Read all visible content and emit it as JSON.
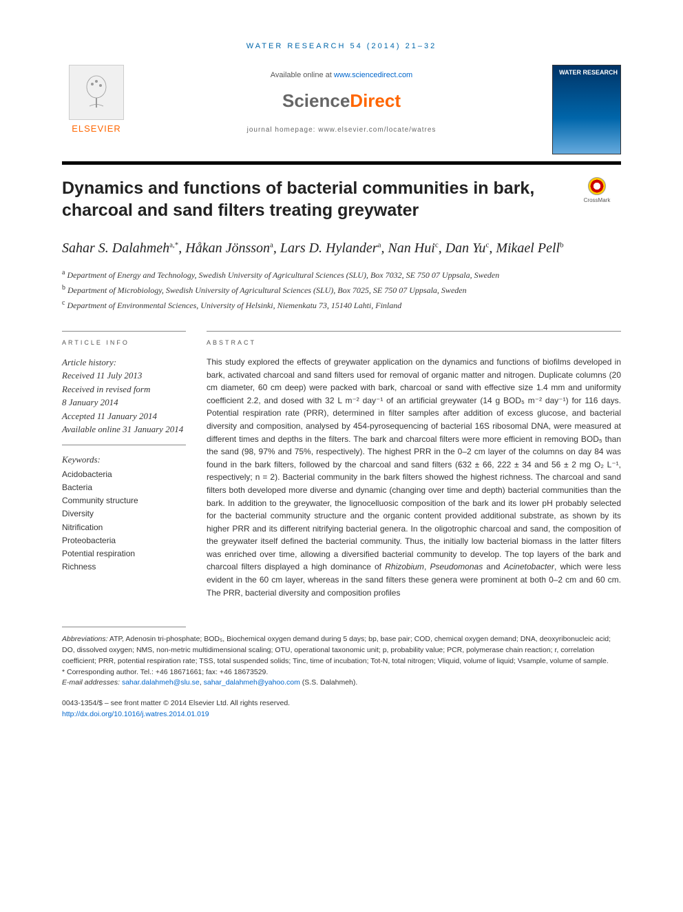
{
  "header_bar": "WATER RESEARCH 54 (2014) 21–32",
  "available_online_prefix": "Available online at ",
  "available_online_link": "www.sciencedirect.com",
  "sciencedirect": {
    "left": "Science",
    "right": "Direct"
  },
  "journal_homepage": "journal homepage: www.elsevier.com/locate/watres",
  "elsevier_label": "ELSEVIER",
  "cover_title": "WATER RESEARCH",
  "crossmark_label": "CrossMark",
  "article_title": "Dynamics and functions of bacterial communities in bark, charcoal and sand filters treating greywater",
  "authors_html": "Sahar S. Dalahmeh<sup>a,*</sup>, Håkan Jönsson<sup>a</sup>, Lars D. Hylander<sup>a</sup>, Nan Hui<sup>c</sup>, Dan Yu<sup>c</sup>, Mikael Pell<sup>b</sup>",
  "affiliations": [
    {
      "sup": "a",
      "text": "Department of Energy and Technology, Swedish University of Agricultural Sciences (SLU), Box 7032, SE 750 07 Uppsala, Sweden"
    },
    {
      "sup": "b",
      "text": "Department of Microbiology, Swedish University of Agricultural Sciences (SLU), Box 7025, SE 750 07 Uppsala, Sweden"
    },
    {
      "sup": "c",
      "text": "Department of Environmental Sciences, University of Helsinki, Niemenkatu 73, 15140 Lahti, Finland"
    }
  ],
  "article_info_label": "ARTICLE INFO",
  "abstract_label": "ABSTRACT",
  "history": {
    "label": "Article history:",
    "received": "Received 11 July 2013",
    "revised1": "Received in revised form",
    "revised2": "8 January 2014",
    "accepted": "Accepted 11 January 2014",
    "online": "Available online 31 January 2014"
  },
  "keywords_label": "Keywords:",
  "keywords": [
    "Acidobacteria",
    "Bacteria",
    "Community structure",
    "Diversity",
    "Nitrification",
    "Proteobacteria",
    "Potential respiration",
    "Richness"
  ],
  "abstract": "This study explored the effects of greywater application on the dynamics and functions of biofilms developed in bark, activated charcoal and sand filters used for removal of organic matter and nitrogen. Duplicate columns (20 cm diameter, 60 cm deep) were packed with bark, charcoal or sand with effective size 1.4 mm and uniformity coefficient 2.2, and dosed with 32 L m⁻² day⁻¹ of an artificial greywater (14 g BOD₅ m⁻² day⁻¹) for 116 days. Potential respiration rate (PRR), determined in filter samples after addition of excess glucose, and bacterial diversity and composition, analysed by 454-pyrosequencing of bacterial 16S ribosomal DNA, were measured at different times and depths in the filters. The bark and charcoal filters were more efficient in removing BOD₅ than the sand (98, 97% and 75%, respectively). The highest PRR in the 0–2 cm layer of the columns on day 84 was found in the bark filters, followed by the charcoal and sand filters (632 ± 66, 222 ± 34 and 56 ± 2 mg O₂ L⁻¹, respectively; n = 2). Bacterial community in the bark filters showed the highest richness. The charcoal and sand filters both developed more diverse and dynamic (changing over time and depth) bacterial communities than the bark. In addition to the greywater, the lignocelluosic composition of the bark and its lower pH probably selected for the bacterial community structure and the organic content provided additional substrate, as shown by its higher PRR and its different nitrifying bacterial genera. In the oligotrophic charcoal and sand, the composition of the greywater itself defined the bacterial community. Thus, the initially low bacterial biomass in the latter filters was enriched over time, allowing a diversified bacterial community to develop. The top layers of the bark and charcoal filters displayed a high dominance of Rhizobium, Pseudomonas and Acinetobacter, which were less evident in the 60 cm layer, whereas in the sand filters these genera were prominent at both 0–2 cm and 60 cm. The PRR, bacterial diversity and composition profiles",
  "abbreviations_label": "Abbreviations:",
  "abbreviations": "ATP, Adenosin tri-phosphate; BOD₅, Biochemical oxygen demand during 5 days; bp, base pair; COD, chemical oxygen demand; DNA, deoxyribonucleic acid; DO, dissolved oxygen; NMS, non-metric multidimensional scaling; OTU, operational taxonomic unit; p, probability value; PCR, polymerase chain reaction; r, correlation coefficient; PRR, potential respiration rate; TSS, total suspended solids; Tinc, time of incubation; Tot-N, total nitrogen; Vliquid, volume of liquid; Vsample, volume of sample.",
  "corresponding_label": "* Corresponding author.",
  "corresponding_text": "Tel.: +46 18671661; fax: +46 18673529.",
  "email_label": "E-mail addresses:",
  "email1": "sahar.dalahmeh@slu.se",
  "email2": "sahar_dalahmeh@yahoo.com",
  "email_of": "(S.S. Dalahmeh).",
  "issn_line": "0043-1354/$ – see front matter © 2014 Elsevier Ltd. All rights reserved.",
  "doi": "http://dx.doi.org/10.1016/j.watres.2014.01.019"
}
